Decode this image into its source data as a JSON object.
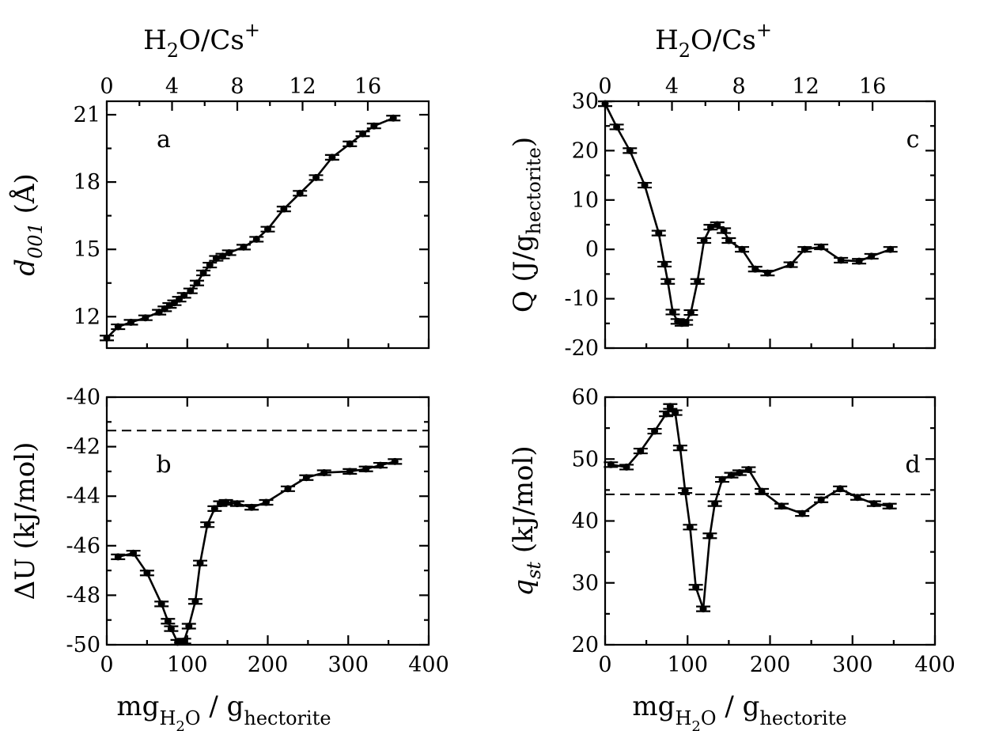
{
  "top_axis_label": {
    "base": "H",
    "sub": "2",
    "mid": "O/Cs",
    "sup": "+"
  },
  "bottom_axis_label": {
    "base": "mg",
    "sub1a": "H",
    "sub1b": "2",
    "sub1c": "O",
    "mid": " / g",
    "sub2": "hectorite"
  },
  "chart_data": [
    {
      "id": "a",
      "type": "line",
      "panel_label": "a",
      "ylabel": {
        "base": "d",
        "sub": "001",
        "rest": " (Å)"
      },
      "xlim": [
        0,
        360
      ],
      "ylim": [
        10.6,
        21.6
      ],
      "yticks": [
        12,
        15,
        18,
        21
      ],
      "top_xlim": [
        0,
        17.76
      ],
      "top_xticks": [
        0,
        4,
        8,
        12,
        16
      ],
      "x": [
        0,
        14,
        30,
        48,
        65,
        72,
        78,
        84,
        90,
        96,
        104,
        112,
        120,
        128,
        136,
        144,
        152,
        170,
        186,
        200,
        220,
        240,
        260,
        280,
        302,
        318,
        332,
        356
      ],
      "y": [
        11.05,
        11.55,
        11.75,
        11.95,
        12.2,
        12.35,
        12.5,
        12.62,
        12.78,
        12.95,
        13.15,
        13.5,
        13.95,
        14.3,
        14.6,
        14.7,
        14.85,
        15.1,
        15.45,
        15.9,
        16.8,
        17.5,
        18.2,
        19.1,
        19.7,
        20.15,
        20.5,
        20.85
      ]
    },
    {
      "id": "b",
      "type": "line",
      "panel_label": "b",
      "ylabel": {
        "text": "ΔU (kJ/mol)"
      },
      "xlim": [
        0,
        400
      ],
      "ylim": [
        -50,
        -40
      ],
      "yticks": [
        -50,
        -48,
        -46,
        -44,
        -42,
        -40
      ],
      "xticks": [
        0,
        100,
        200,
        300,
        400
      ],
      "reference_line": -41.35,
      "x": [
        14,
        33,
        50,
        68,
        76,
        80,
        88,
        96,
        102,
        110,
        116,
        125,
        134,
        141,
        148,
        162,
        180,
        198,
        225,
        248,
        270,
        302,
        322,
        340,
        358
      ],
      "y": [
        -46.45,
        -46.3,
        -47.1,
        -48.35,
        -49.05,
        -49.35,
        -49.9,
        -49.85,
        -49.25,
        -48.25,
        -46.7,
        -45.15,
        -44.5,
        -44.3,
        -44.25,
        -44.3,
        -44.45,
        -44.25,
        -43.7,
        -43.25,
        -43.05,
        -43.0,
        -42.9,
        -42.75,
        -42.6
      ]
    },
    {
      "id": "c",
      "type": "line",
      "panel_label": "c",
      "ylabel": {
        "base": "Q (J/g",
        "sub": "hectorite",
        "rest": ")"
      },
      "xlim": [
        0,
        360
      ],
      "ylim": [
        -20,
        30
      ],
      "yticks": [
        -20,
        -10,
        0,
        10,
        20,
        30
      ],
      "top_xlim": [
        0,
        17.76
      ],
      "top_xticks": [
        0,
        4,
        8,
        12,
        16
      ],
      "x": [
        0,
        14,
        30,
        48,
        65,
        72,
        76,
        82,
        88,
        93,
        98,
        104,
        112,
        120,
        128,
        136,
        144,
        150,
        166,
        182,
        197,
        225,
        242,
        262,
        286,
        308,
        323,
        346
      ],
      "y": [
        29.5,
        24.8,
        20.0,
        13.0,
        3.3,
        -3.0,
        -6.5,
        -12.7,
        -14.6,
        -15.0,
        -14.8,
        -12.8,
        -6.5,
        1.8,
        4.5,
        5.0,
        3.8,
        1.8,
        0.0,
        -4.0,
        -4.8,
        -3.1,
        0.0,
        0.5,
        -2.2,
        -2.4,
        -1.4,
        0.0
      ]
    },
    {
      "id": "d",
      "type": "line",
      "panel_label": "d",
      "ylabel": {
        "base": "q",
        "sub": "st",
        "rest": " (kJ/mol)"
      },
      "xlim": [
        0,
        400
      ],
      "ylim": [
        20,
        60
      ],
      "yticks": [
        20,
        30,
        40,
        50,
        60
      ],
      "xticks": [
        0,
        100,
        200,
        300,
        400
      ],
      "reference_line": 44.3,
      "x": [
        7,
        26,
        43,
        60,
        74,
        79,
        85,
        91,
        97,
        103,
        110,
        119,
        127,
        133,
        142,
        153,
        163,
        174,
        190,
        214,
        239,
        262,
        285,
        306,
        326,
        345
      ],
      "y": [
        49.1,
        48.7,
        51.3,
        54.5,
        57.3,
        58.5,
        57.5,
        51.8,
        44.9,
        39.0,
        29.3,
        25.8,
        37.6,
        42.8,
        46.7,
        47.4,
        47.8,
        48.3,
        44.8,
        42.4,
        41.2,
        43.4,
        45.2,
        43.8,
        42.8,
        42.4
      ]
    }
  ]
}
